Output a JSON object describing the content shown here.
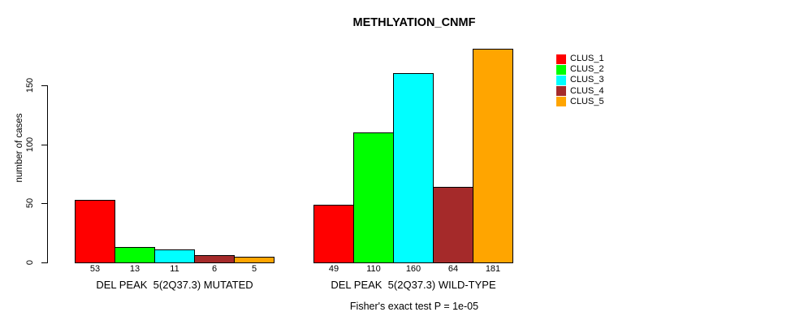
{
  "chart_data": {
    "type": "bar",
    "title": "METHLYATION_CNMF",
    "ylabel": "number of cases",
    "yticks": [
      0,
      50,
      100,
      150
    ],
    "ylim": [
      0,
      185
    ],
    "grid": false,
    "legend_position": "top-right",
    "bar_value_labels": true,
    "categories": [
      "DEL PEAK  5(2Q37.3) MUTATED",
      "DEL PEAK  5(2Q37.3) WILD-TYPE"
    ],
    "series": [
      {
        "name": "CLUS_1",
        "color": "#FF0000",
        "values": [
          53,
          49
        ]
      },
      {
        "name": "CLUS_2",
        "color": "#00FF00",
        "values": [
          13,
          110
        ]
      },
      {
        "name": "CLUS_3",
        "color": "#00FFFF",
        "values": [
          11,
          160
        ]
      },
      {
        "name": "CLUS_4",
        "color": "#A52A2A",
        "values": [
          6,
          64
        ]
      },
      {
        "name": "CLUS_5",
        "color": "#FFA500",
        "values": [
          5,
          181
        ]
      }
    ],
    "annotation": "Fisher's exact test P = 1e-05"
  }
}
